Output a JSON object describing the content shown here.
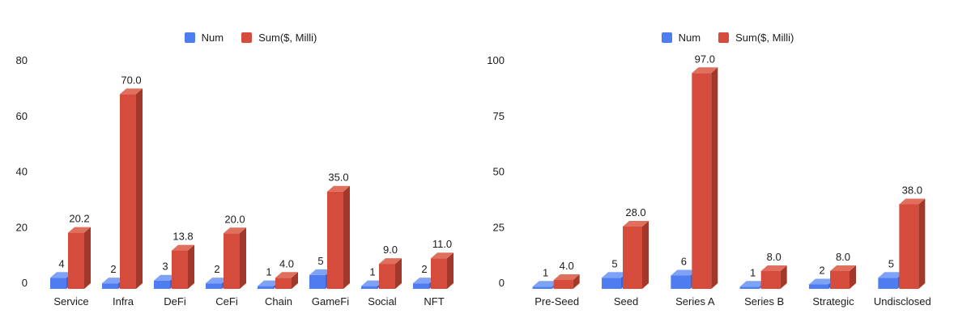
{
  "page": {
    "background": "#ffffff"
  },
  "colors": {
    "num_front": "#4e7df2",
    "num_top": "#7ea2f6",
    "num_side": "#3c63cf",
    "sum_front": "#d54c3d",
    "sum_top": "#e0705d",
    "sum_side": "#a23829",
    "label_text": "#1b1b1b",
    "axis_text": "#1b1b1b"
  },
  "chart_data": [
    {
      "type": "bar",
      "style": "3d-column-grouped",
      "title": "",
      "legend": [
        "Num",
        "Sum($, Milli)"
      ],
      "legend_position": "top-center",
      "grid": false,
      "categories": [
        "Service",
        "Infra",
        "DeFi",
        "CeFi",
        "Chain",
        "GameFi",
        "Social",
        "NFT"
      ],
      "series": [
        {
          "name": "Num",
          "color": "#4e7df2",
          "values": [
            4,
            2,
            3,
            2,
            1,
            5,
            1,
            2
          ],
          "labels": [
            "4",
            "2",
            "3",
            "2",
            "1",
            "5",
            "1",
            "2"
          ]
        },
        {
          "name": "Sum($, Milli)",
          "color": "#d54c3d",
          "values": [
            20.2,
            70.0,
            13.8,
            20.0,
            4.0,
            35.0,
            9.0,
            11.0
          ],
          "labels": [
            "20.2",
            "70.0",
            "13.8",
            "20.0",
            "4.0",
            "35.0",
            "9.0",
            "11.0"
          ]
        }
      ],
      "xlabel": "",
      "ylabel": "",
      "ylim": [
        0,
        80
      ],
      "yticks": [
        0,
        20,
        40,
        60,
        80
      ]
    },
    {
      "type": "bar",
      "style": "3d-column-grouped",
      "title": "",
      "legend": [
        "Num",
        "Sum($, Milli)"
      ],
      "legend_position": "top-center",
      "grid": false,
      "categories": [
        "Pre-Seed",
        "Seed",
        "Series A",
        "Series B",
        "Strategic",
        "Undisclosed"
      ],
      "series": [
        {
          "name": "Num",
          "color": "#4e7df2",
          "values": [
            1,
            5,
            6,
            1,
            2,
            5
          ],
          "labels": [
            "1",
            "5",
            "6",
            "1",
            "2",
            "5"
          ]
        },
        {
          "name": "Sum($, Milli)",
          "color": "#d54c3d",
          "values": [
            4.0,
            28.0,
            97.0,
            8.0,
            8.0,
            38.0
          ],
          "labels": [
            "4.0",
            "28.0",
            "97.0",
            "8.0",
            "8.0",
            "38.0"
          ]
        }
      ],
      "xlabel": "",
      "ylabel": "",
      "ylim": [
        0,
        100
      ],
      "yticks": [
        0,
        25,
        50,
        75,
        100
      ]
    }
  ]
}
